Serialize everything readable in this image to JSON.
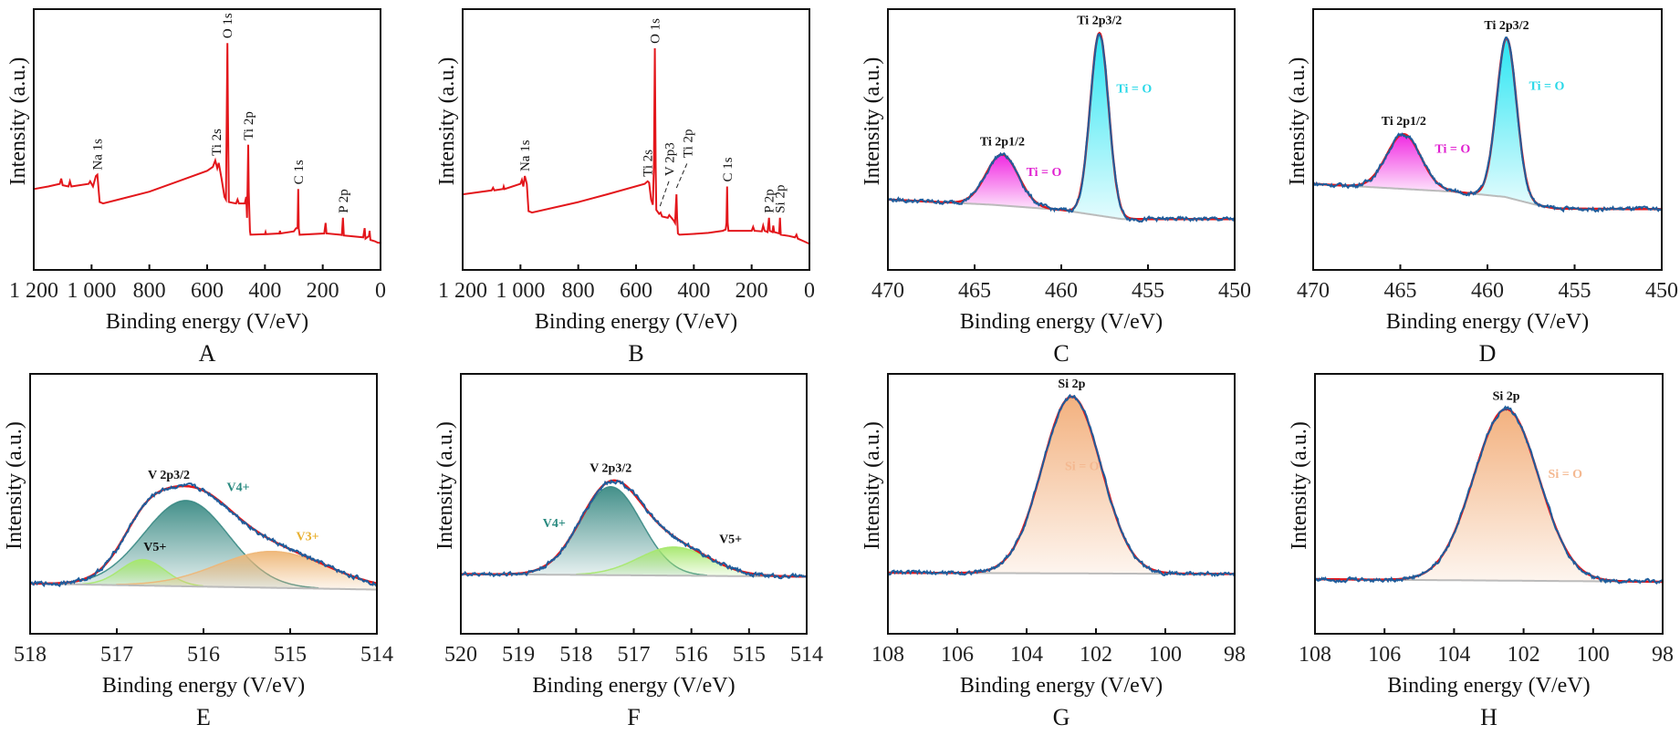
{
  "chart_data": [
    {
      "panel_label": "A",
      "type": "line",
      "kind": "survey",
      "xlabel": "Binding energy (V/eV)",
      "ylabel": "Intensity (a.u.)",
      "xlim": [
        1200,
        0
      ],
      "ylim": [
        0,
        100
      ],
      "x_reversed": true,
      "grid": false,
      "xticks": [
        1200,
        1000,
        800,
        600,
        400,
        200,
        0
      ],
      "xtick_labels": [
        "1 200",
        "1 000",
        "800",
        "600",
        "400",
        "200",
        "0"
      ],
      "line_color": "#e3161b",
      "points": [
        [
          1200,
          31
        ],
        [
          1150,
          32
        ],
        [
          1110,
          33
        ],
        [
          1105,
          35
        ],
        [
          1100,
          32.5
        ],
        [
          1080,
          32
        ],
        [
          1075,
          34
        ],
        [
          1070,
          32
        ],
        [
          1010,
          33
        ],
        [
          1005,
          34
        ],
        [
          995,
          32
        ],
        [
          985,
          36
        ],
        [
          980,
          36.5
        ],
        [
          972,
          26
        ],
        [
          960,
          25.5
        ],
        [
          800,
          30
        ],
        [
          700,
          34
        ],
        [
          600,
          38
        ],
        [
          580,
          39.5
        ],
        [
          572,
          42
        ],
        [
          565,
          39
        ],
        [
          560,
          41
        ],
        [
          550,
          35
        ],
        [
          540,
          28
        ],
        [
          535,
          27
        ],
        [
          532,
          60
        ],
        [
          530,
          87
        ],
        [
          528,
          60
        ],
        [
          525,
          26
        ],
        [
          500,
          25.5
        ],
        [
          495,
          27
        ],
        [
          490,
          25.5
        ],
        [
          470,
          25.5
        ],
        [
          465,
          28
        ],
        [
          462,
          20
        ],
        [
          460,
          32
        ],
        [
          458,
          48
        ],
        [
          456,
          30
        ],
        [
          452,
          15
        ],
        [
          450,
          13.5
        ],
        [
          400,
          13.7
        ],
        [
          398,
          14.5
        ],
        [
          396,
          13.7
        ],
        [
          350,
          14
        ],
        [
          348,
          15
        ],
        [
          346,
          14
        ],
        [
          300,
          14.8
        ],
        [
          292,
          16
        ],
        [
          287,
          16
        ],
        [
          285,
          31
        ],
        [
          283,
          16
        ],
        [
          280,
          13.5
        ],
        [
          195,
          14
        ],
        [
          190,
          18
        ],
        [
          187,
          14
        ],
        [
          140,
          13.5
        ],
        [
          134,
          13.4
        ],
        [
          130,
          20
        ],
        [
          127,
          13.2
        ],
        [
          60,
          12.5
        ],
        [
          55,
          16
        ],
        [
          52,
          12
        ],
        [
          40,
          13
        ],
        [
          38,
          15
        ],
        [
          35,
          11.5
        ],
        [
          20,
          11
        ],
        [
          10,
          10.5
        ],
        [
          0,
          10.3
        ]
      ],
      "peak_labels": [
        {
          "text": "Na 1s",
          "x": 980
        },
        {
          "text": "Ti 2s",
          "x": 568
        },
        {
          "text": "O 1s",
          "x": 530
        },
        {
          "text": "Ti 2p",
          "x": 458
        },
        {
          "text": "C 1s",
          "x": 285
        },
        {
          "text": "P 2p",
          "x": 130
        }
      ]
    },
    {
      "panel_label": "B",
      "type": "line",
      "kind": "survey",
      "xlabel": "Binding energy (V/eV)",
      "ylabel": "Intensity (a.u.)",
      "xlim": [
        1200,
        0
      ],
      "ylim": [
        0,
        100
      ],
      "x_reversed": true,
      "grid": false,
      "xticks": [
        1200,
        1000,
        800,
        600,
        400,
        200,
        0
      ],
      "xtick_labels": [
        "1 200",
        "1 000",
        "800",
        "600",
        "400",
        "200",
        "0"
      ],
      "line_color": "#e3161b",
      "points": [
        [
          1200,
          29
        ],
        [
          1100,
          30.5
        ],
        [
          1095,
          31.5
        ],
        [
          1090,
          30.5
        ],
        [
          1060,
          31
        ],
        [
          1058,
          32
        ],
        [
          1055,
          31
        ],
        [
          1000,
          33
        ],
        [
          995,
          34.5
        ],
        [
          990,
          32
        ],
        [
          985,
          36
        ],
        [
          978,
          33
        ],
        [
          972,
          22.5
        ],
        [
          960,
          22
        ],
        [
          800,
          26
        ],
        [
          700,
          29
        ],
        [
          570,
          33
        ],
        [
          560,
          34
        ],
        [
          555,
          33.5
        ],
        [
          548,
          27
        ],
        [
          542,
          25
        ],
        [
          538,
          40
        ],
        [
          535,
          85
        ],
        [
          532,
          40
        ],
        [
          530,
          23
        ],
        [
          520,
          21.5
        ],
        [
          515,
          22
        ],
        [
          510,
          20.5
        ],
        [
          490,
          20
        ],
        [
          485,
          21
        ],
        [
          470,
          19
        ],
        [
          465,
          18
        ],
        [
          462,
          25
        ],
        [
          460,
          29
        ],
        [
          458,
          20
        ],
        [
          455,
          14
        ],
        [
          450,
          13.5
        ],
        [
          400,
          13.8
        ],
        [
          350,
          14.2
        ],
        [
          300,
          15
        ],
        [
          290,
          15.5
        ],
        [
          287,
          18
        ],
        [
          285,
          32
        ],
        [
          283,
          18
        ],
        [
          280,
          15
        ],
        [
          200,
          15
        ],
        [
          195,
          16.5
        ],
        [
          190,
          15
        ],
        [
          165,
          14.8
        ],
        [
          160,
          17
        ],
        [
          155,
          15
        ],
        [
          145,
          14.5
        ],
        [
          140,
          20
        ],
        [
          137,
          15
        ],
        [
          128,
          14.5
        ],
        [
          125,
          17
        ],
        [
          122,
          14.5
        ],
        [
          105,
          14
        ],
        [
          102,
          20
        ],
        [
          99,
          13.5
        ],
        [
          70,
          13
        ],
        [
          50,
          12.5
        ],
        [
          45,
          13.5
        ],
        [
          40,
          12
        ],
        [
          20,
          11
        ],
        [
          0,
          10
        ]
      ],
      "peak_labels": [
        {
          "text": "Na 1s",
          "x": 985
        },
        {
          "text": "Ti 2s",
          "x": 560
        },
        {
          "text": "O 1s",
          "x": 535
        },
        {
          "text": "V 2p3",
          "x": 517,
          "leader": true
        },
        {
          "text": "Ti 2p",
          "x": 460,
          "leader": true
        },
        {
          "text": "C 1s",
          "x": 285
        },
        {
          "text": "P 2p",
          "x": 140
        },
        {
          "text": "Si 2p",
          "x": 102
        }
      ]
    },
    {
      "panel_label": "C",
      "type": "line",
      "kind": "fit",
      "xlabel": "Binding energy (V/eV)",
      "ylabel": "Intensity (a.u.)",
      "xlim": [
        470,
        450
      ],
      "ylim": [
        0,
        100
      ],
      "x_reversed": true,
      "grid": false,
      "xticks": [
        470,
        465,
        460,
        455,
        450
      ],
      "xtick_labels": [
        "470",
        "465",
        "460",
        "455",
        "450"
      ],
      "background": [
        [
          470,
          27
        ],
        [
          464,
          25
        ],
        [
          460,
          23
        ],
        [
          458,
          21
        ],
        [
          456.5,
          19.5
        ],
        [
          450,
          19.5
        ]
      ],
      "components": [
        {
          "name": "Ti = O",
          "center": 463.4,
          "height": 19.5,
          "fwhm": 2.2,
          "color": "#f01ee0",
          "label_color": "#e020d0"
        },
        {
          "name": "Ti = O",
          "center": 457.8,
          "height": 70,
          "fwhm": 1.25,
          "color": "#1ee4f2",
          "label_color": "#2ad8e8"
        }
      ],
      "peak_labels": [
        {
          "text": "Ti 2p1/2",
          "x": 463.4
        },
        {
          "text": "Ti 2p3/2",
          "x": 457.8
        }
      ],
      "raw_color": "#1f5d9c",
      "fit_color": "#e3161b",
      "background_color": "#bbbbbb"
    },
    {
      "panel_label": "D",
      "type": "line",
      "kind": "fit",
      "xlabel": "Binding energy (V/eV)",
      "ylabel": "Intensity (a.u.)",
      "xlim": [
        470,
        450
      ],
      "ylim": [
        0,
        100
      ],
      "x_reversed": true,
      "grid": false,
      "xticks": [
        470,
        465,
        460,
        455,
        450
      ],
      "xtick_labels": [
        "470",
        "465",
        "460",
        "455",
        "450"
      ],
      "background": [
        [
          470,
          33
        ],
        [
          462,
          30
        ],
        [
          459,
          28
        ],
        [
          457,
          24.6
        ],
        [
          456,
          23.5
        ],
        [
          450,
          23.3
        ]
      ],
      "components": [
        {
          "name": "Ti = O",
          "center": 464.8,
          "height": 21,
          "fwhm": 2.3,
          "color": "#f01ee0",
          "label_color": "#e020d0"
        },
        {
          "name": "Ti = O",
          "center": 458.9,
          "height": 61,
          "fwhm": 1.35,
          "color": "#1ee4f2",
          "label_color": "#2ad8e8"
        }
      ],
      "peak_labels": [
        {
          "text": "Ti 2p1/2",
          "x": 464.8
        },
        {
          "text": "Ti 2p3/2",
          "x": 458.9
        }
      ],
      "raw_color": "#1f5d9c",
      "fit_color": "#e3161b",
      "background_color": "#bbbbbb"
    },
    {
      "panel_label": "E",
      "type": "line",
      "kind": "fit",
      "xlabel": "Binding energy (V/eV)",
      "ylabel": "Intensity (a.u.)",
      "xlim": [
        518,
        514
      ],
      "ylim": [
        0,
        100
      ],
      "x_reversed": true,
      "grid": false,
      "xticks": [
        518,
        517,
        516,
        515,
        514
      ],
      "xtick_labels": [
        "518",
        "517",
        "516",
        "515",
        "514"
      ],
      "background": [
        [
          518,
          19.3
        ],
        [
          514,
          17
        ]
      ],
      "components": [
        {
          "name": "V4+",
          "center": 516.2,
          "height": 33,
          "fwhm": 1.15,
          "color": "#3a8a84",
          "label_color": "#2a8a80"
        },
        {
          "name": "V5+",
          "center": 516.7,
          "height": 10,
          "fwhm": 0.6,
          "color": "#a6e86c",
          "label_color": "#111111"
        },
        {
          "name": "V3+",
          "center": 515.2,
          "height": 14,
          "fwhm": 1.5,
          "color": "#eeb676",
          "label_color": "#e8b030"
        }
      ],
      "peak_labels": [
        {
          "text": "V 2p3/2",
          "x": 516.4
        }
      ],
      "raw_color": "#1f5d9c",
      "fit_color": "#e3161b",
      "background_color": "#bbbbbb"
    },
    {
      "panel_label": "F",
      "type": "line",
      "kind": "fit",
      "xlabel": "Binding energy (V/eV)",
      "ylabel": "Intensity (a.u.)",
      "xlim": [
        520,
        514
      ],
      "ylim": [
        0,
        100
      ],
      "x_reversed": true,
      "grid": false,
      "xticks": [
        520,
        519,
        518,
        517,
        516,
        515,
        514
      ],
      "xtick_labels": [
        "520",
        "519",
        "518",
        "517",
        "516",
        "515",
        "514"
      ],
      "background": [
        [
          520,
          23
        ],
        [
          514,
          22
        ]
      ],
      "components": [
        {
          "name": "V4+",
          "center": 517.4,
          "height": 34,
          "fwhm": 1.25,
          "color": "#3a8a84",
          "label_color": "#2a8a80"
        },
        {
          "name": "V5+",
          "center": 516.3,
          "height": 11,
          "fwhm": 1.45,
          "color": "#a6e86c",
          "label_color": "#111111"
        }
      ],
      "peak_labels": [
        {
          "text": "V 2p3/2",
          "x": 517.4
        }
      ],
      "raw_color": "#1f5d9c",
      "fit_color": "#e3161b",
      "background_color": "#bbbbbb"
    },
    {
      "panel_label": "G",
      "type": "line",
      "kind": "fit",
      "xlabel": "Binding energy (V/eV)",
      "ylabel": "Intensity (a.u.)",
      "xlim": [
        108,
        98
      ],
      "ylim": [
        0,
        100
      ],
      "x_reversed": true,
      "grid": false,
      "xticks": [
        108,
        106,
        104,
        102,
        100,
        98
      ],
      "xtick_labels": [
        "108",
        "106",
        "104",
        "102",
        "100",
        "98"
      ],
      "background": [
        [
          108,
          23.5
        ],
        [
          98,
          23
        ]
      ],
      "components": [
        {
          "name": "Si = O",
          "center": 102.7,
          "height": 68,
          "fwhm": 2.0,
          "color": "#f2ad78",
          "label_color": "#f4b890"
        }
      ],
      "peak_labels": [
        {
          "text": "Si 2p",
          "x": 102.7
        }
      ],
      "raw_color": "#1f5d9c",
      "fit_color": "#e3161b",
      "background_color": "#bbbbbb"
    },
    {
      "panel_label": "H",
      "type": "line",
      "kind": "fit",
      "xlabel": "Binding energy (V/eV)",
      "ylabel": "Intensity (a.u.)",
      "xlim": [
        108,
        98
      ],
      "ylim": [
        0,
        100
      ],
      "x_reversed": true,
      "grid": false,
      "xticks": [
        108,
        106,
        104,
        102,
        100,
        98
      ],
      "xtick_labels": [
        "108",
        "106",
        "104",
        "102",
        "100",
        "98"
      ],
      "background": [
        [
          108,
          21
        ],
        [
          98,
          20
        ]
      ],
      "components": [
        {
          "name": "Si = O",
          "center": 102.5,
          "height": 66,
          "fwhm": 2.2,
          "color": "#f2ad78",
          "label_color": "#f4b890"
        }
      ],
      "peak_labels": [
        {
          "text": "Si 2p",
          "x": 102.5
        }
      ],
      "raw_color": "#1f5d9c",
      "fit_color": "#e3161b",
      "background_color": "#bbbbbb"
    }
  ]
}
